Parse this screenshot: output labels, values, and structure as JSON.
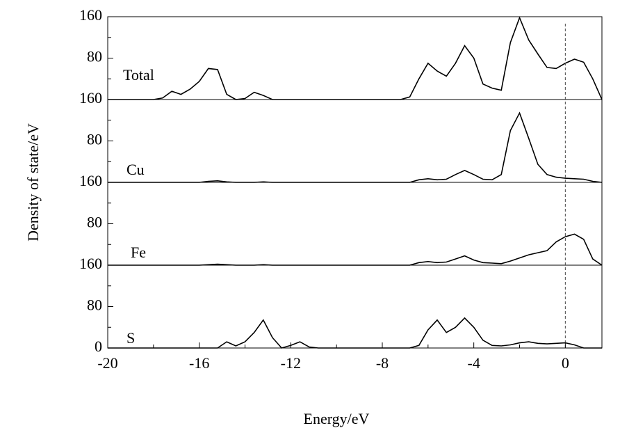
{
  "chart_data": {
    "type": "line",
    "x_label": "Energy/eV",
    "y_label": "Density of state/eV",
    "x": [
      -20,
      -19.6,
      -19.2,
      -18.8,
      -18.4,
      -18,
      -17.6,
      -17.2,
      -16.8,
      -16.4,
      -16,
      -15.6,
      -15.2,
      -14.8,
      -14.4,
      -14,
      -13.6,
      -13.2,
      -12.8,
      -12.4,
      -12,
      -11.6,
      -11.2,
      -10.8,
      -10.4,
      -10,
      -9.6,
      -9.2,
      -8.8,
      -8.4,
      -8,
      -7.6,
      -7.2,
      -6.8,
      -6.4,
      -6,
      -5.6,
      -5.2,
      -4.8,
      -4.4,
      -4,
      -3.6,
      -3.2,
      -2.8,
      -2.4,
      -2,
      -1.6,
      -1.2,
      -0.8,
      -0.4,
      0,
      0.4,
      0.8,
      1.2,
      1.6
    ],
    "xlim": [
      -20,
      1.6
    ],
    "xticks": [
      -20,
      -16,
      -12,
      -8,
      -4,
      0
    ],
    "minor_xticks": [
      -18,
      -14,
      -10,
      -6,
      -2
    ],
    "ylim": [
      0,
      160
    ],
    "minor_yticks": [
      40,
      120
    ],
    "vline": 0,
    "series": [
      {
        "name": "Total",
        "color": "#000000",
        "yticks": [
          80,
          160
        ],
        "values": [
          0,
          0,
          0,
          0,
          0,
          0,
          3,
          16,
          10,
          20,
          35,
          60,
          58,
          10,
          0,
          2,
          14,
          8,
          0,
          0,
          0,
          0,
          0,
          0,
          0,
          0,
          0,
          0,
          0,
          0,
          0,
          0,
          0,
          5,
          40,
          70,
          55,
          45,
          70,
          104,
          80,
          30,
          22,
          18,
          110,
          158,
          115,
          88,
          62,
          60,
          70,
          78,
          72,
          40,
          0
        ]
      },
      {
        "name": "Cu",
        "color": "#000000",
        "yticks": [
          80,
          160
        ],
        "values": [
          0,
          0,
          0,
          0,
          0,
          0,
          0,
          0,
          0,
          0,
          0,
          2,
          3,
          1,
          0,
          0,
          0,
          1,
          0,
          0,
          0,
          0,
          0,
          0,
          0,
          0,
          0,
          0,
          0,
          0,
          0,
          0,
          0,
          0,
          5,
          7,
          5,
          6,
          15,
          23,
          15,
          6,
          5,
          15,
          100,
          134,
          85,
          35,
          15,
          10,
          8,
          7,
          6,
          2,
          0
        ]
      },
      {
        "name": "Fe",
        "color": "#000000",
        "yticks": [
          80,
          160
        ],
        "values": [
          0,
          0,
          0,
          0,
          0,
          0,
          0,
          0,
          0,
          0,
          0,
          1,
          2,
          1,
          0,
          0,
          0,
          1,
          0,
          0,
          0,
          0,
          0,
          0,
          0,
          0,
          0,
          0,
          0,
          0,
          0,
          0,
          0,
          0,
          5,
          7,
          5,
          6,
          12,
          18,
          10,
          5,
          4,
          3,
          8,
          14,
          20,
          24,
          28,
          45,
          55,
          60,
          50,
          12,
          0
        ]
      },
      {
        "name": "S",
        "color": "#000000",
        "yticks": [
          0,
          80,
          160
        ],
        "values": [
          0,
          0,
          0,
          0,
          0,
          0,
          0,
          0,
          0,
          0,
          0,
          0,
          0,
          12,
          4,
          12,
          30,
          54,
          20,
          0,
          5,
          12,
          2,
          0,
          0,
          0,
          0,
          0,
          0,
          0,
          0,
          0,
          0,
          0,
          5,
          35,
          54,
          30,
          40,
          58,
          40,
          15,
          5,
          4,
          6,
          10,
          12,
          9,
          8,
          9,
          10,
          6,
          0,
          0,
          0
        ]
      }
    ]
  }
}
